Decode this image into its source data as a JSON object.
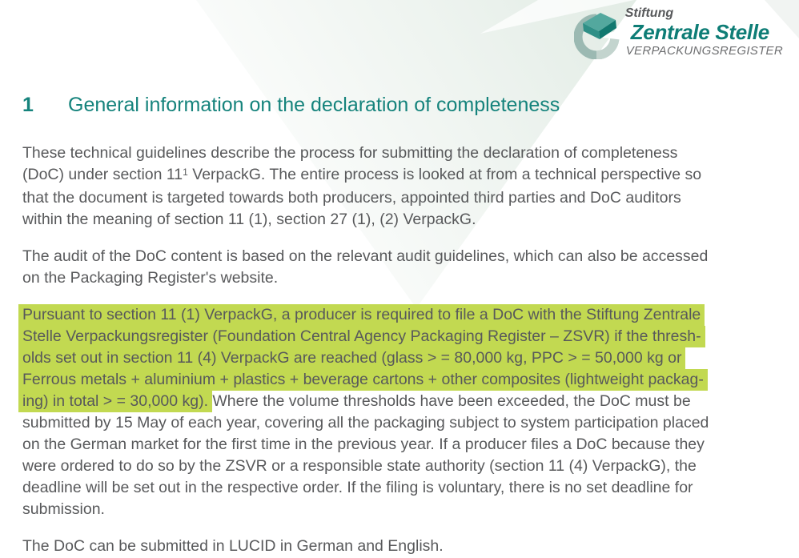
{
  "colors": {
    "accent_teal": "#15837c",
    "body_text": "#58595b",
    "highlight": "#c2d951",
    "band_tint": "#e6eee8"
  },
  "logo": {
    "icon": "zsvr-cube-ring-icon",
    "top": "Stiftung",
    "main": "Zentrale Stelle",
    "sub": "VERPACKUNGSREGISTER"
  },
  "heading": {
    "number": "1",
    "title": "General information on the declaration of completeness"
  },
  "paragraphs": [
    {
      "lines": [
        [
          {
            "t": "These technical guidelines describe the process for submitting the declaration of completeness"
          }
        ],
        [
          {
            "t": "(DoC) under section 11"
          },
          {
            "t": "1",
            "sup": true
          },
          {
            "t": " VerpackG. The entire process is looked at from a technical perspective so"
          }
        ],
        [
          {
            "t": "that the document is targeted towards both producers, appointed third parties and DoC auditors"
          }
        ],
        [
          {
            "t": "within the meaning of section 11 (1), section 27 (1), (2) VerpackG."
          }
        ]
      ]
    },
    {
      "lines": [
        [
          {
            "t": "The audit of the DoC content is based on the relevant audit guidelines, which can also be accessed"
          }
        ],
        [
          {
            "t": "on the Packaging Register's website."
          }
        ]
      ]
    },
    {
      "lines": [
        [
          {
            "t": "Pursuant to section 11 (1) VerpackG, a producer is required to file a DoC with the Stiftung Zentrale",
            "h": true
          }
        ],
        [
          {
            "t": "Stelle Verpackungsregister (Foundation Central Agency Packaging Register – ZSVR) if the thresh-",
            "h": true
          }
        ],
        [
          {
            "t": "olds set out in section 11 (4) VerpackG are reached (glass > = 80,000 kg, PPC > = 50,000 kg or",
            "h": true
          }
        ],
        [
          {
            "t": "Ferrous metals + aluminium + plastics + beverage cartons + other composites (lightweight packag-",
            "h": true
          }
        ],
        [
          {
            "t": "ing) in total > = 30,000 kg).",
            "h": true
          },
          {
            "t": " Where the volume thresholds have been exceeded, the DoC must be"
          }
        ],
        [
          {
            "t": "submitted by 15 May of each year, covering all the packaging subject to system participation placed"
          }
        ],
        [
          {
            "t": "on the German market for the first time in the previous year. If a producer files a DoC because they"
          }
        ],
        [
          {
            "t": "were ordered to do so by the ZSVR or a responsible state authority (section 11 (4) VerpackG), the"
          }
        ],
        [
          {
            "t": "deadline will be set out in the respective order. If the filing is voluntary, there is no set deadline for"
          }
        ],
        [
          {
            "t": "submission."
          }
        ]
      ]
    },
    {
      "lines": [
        [
          {
            "t": "The DoC can be submitted in LUCID in German and English."
          }
        ]
      ]
    }
  ]
}
